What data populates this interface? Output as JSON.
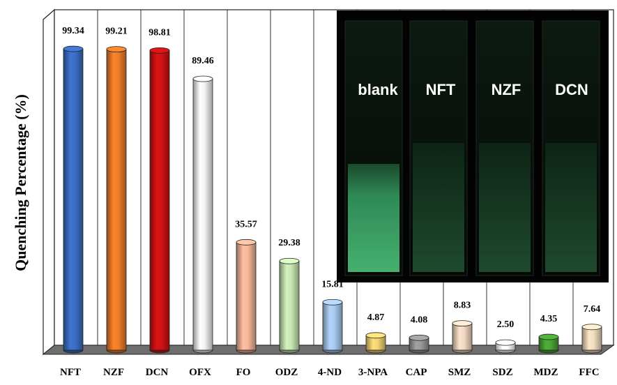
{
  "chart_data": {
    "type": "bar3d",
    "y_label": "Quenching Percentage (%)",
    "categories": [
      "NFT",
      "NZF",
      "DCN",
      "OFX",
      "FO",
      "ODZ",
      "4-ND",
      "3-NPA",
      "CAP",
      "SMZ",
      "SDZ",
      "MDZ",
      "FFC"
    ],
    "values": [
      99.34,
      99.21,
      98.81,
      89.46,
      35.57,
      29.38,
      15.81,
      4.87,
      4.08,
      8.83,
      2.5,
      4.35,
      7.64
    ],
    "value_labels": [
      "99.34",
      "99.21",
      "98.81",
      "89.46",
      "35.57",
      "29.38",
      "15.81",
      "4.87",
      "4.08",
      "8.83",
      "2.50",
      "4.35",
      "7.64"
    ],
    "colors": [
      "#3b6fc6",
      "#f07d2a",
      "#d01212",
      "#f2f2f2",
      "#f4b69a",
      "#c9e6b3",
      "#a9c9ef",
      "#f3d373",
      "#9a9a9a",
      "#f1d8c2",
      "#ffffff",
      "#4aa534",
      "#f1dcc0"
    ],
    "ylim": [
      0,
      112
    ]
  },
  "inset": {
    "labels": [
      "blank",
      "NFT",
      "NZF",
      "DCN"
    ]
  }
}
